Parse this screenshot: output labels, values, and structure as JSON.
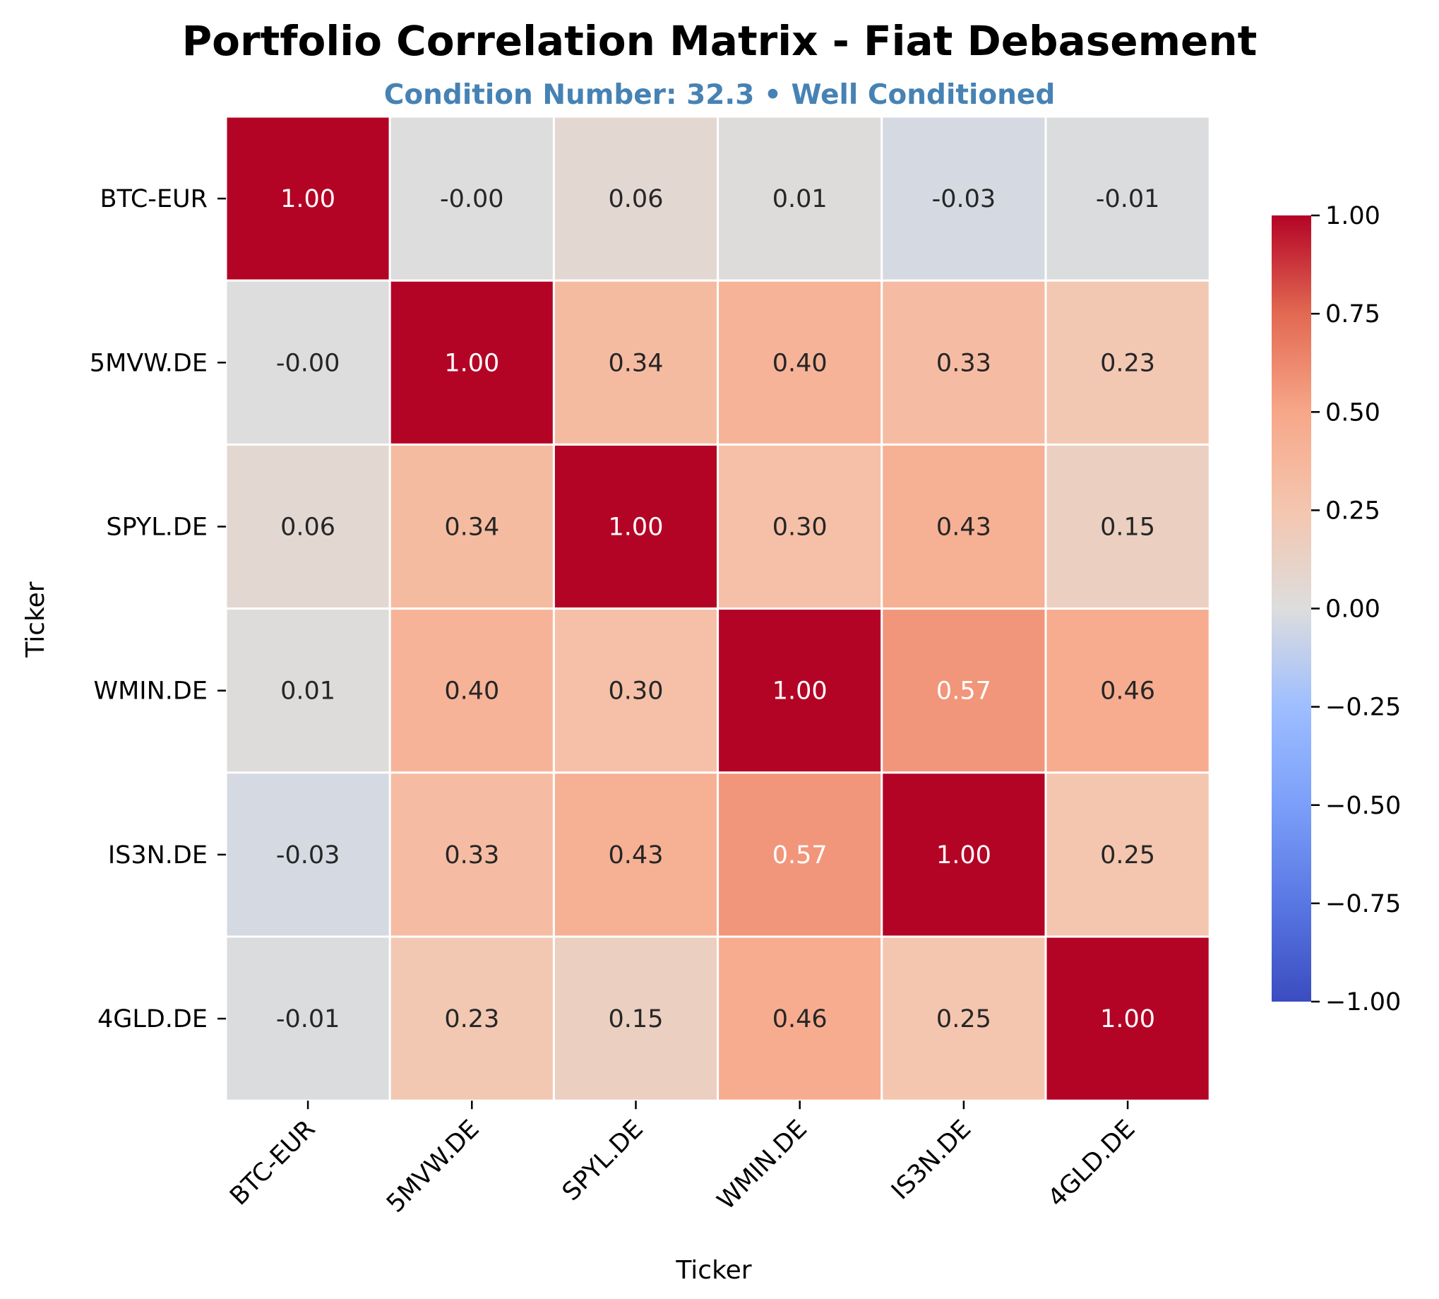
{
  "chart_data": {
    "type": "heatmap",
    "title": "Portfolio Correlation Matrix - Fiat Debasement",
    "subtitle": "Condition Number: 32.3 • Well Conditioned",
    "xlabel": "Ticker",
    "ylabel": "Ticker",
    "rows": [
      "BTC-EUR",
      "5MVW.DE",
      "SPYL.DE",
      "WMIN.DE",
      "IS3N.DE",
      "4GLD.DE"
    ],
    "columns": [
      "BTC-EUR",
      "5MVW.DE",
      "SPYL.DE",
      "WMIN.DE",
      "IS3N.DE",
      "4GLD.DE"
    ],
    "values": [
      [
        1.0,
        -0.0,
        0.06,
        0.01,
        -0.03,
        -0.01
      ],
      [
        -0.0,
        1.0,
        0.34,
        0.4,
        0.33,
        0.23
      ],
      [
        0.06,
        0.34,
        1.0,
        0.3,
        0.43,
        0.15
      ],
      [
        0.01,
        0.4,
        0.3,
        1.0,
        0.57,
        0.46
      ],
      [
        -0.03,
        0.33,
        0.43,
        0.57,
        1.0,
        0.25
      ],
      [
        -0.01,
        0.23,
        0.15,
        0.46,
        0.25,
        1.0
      ]
    ],
    "value_labels": [
      [
        "1.00",
        "-0.00",
        "0.06",
        "0.01",
        "-0.03",
        "-0.01"
      ],
      [
        "-0.00",
        "1.00",
        "0.34",
        "0.40",
        "0.33",
        "0.23"
      ],
      [
        "0.06",
        "0.34",
        "1.00",
        "0.30",
        "0.43",
        "0.15"
      ],
      [
        "0.01",
        "0.40",
        "0.30",
        "1.00",
        "0.57",
        "0.46"
      ],
      [
        "-0.03",
        "0.33",
        "0.43",
        "0.57",
        "1.00",
        "0.25"
      ],
      [
        "-0.01",
        "0.23",
        "0.15",
        "0.46",
        "0.25",
        "1.00"
      ]
    ],
    "colormap": "coolwarm",
    "vmin": -1.0,
    "vmax": 1.0,
    "colorbar_ticks": [
      1.0,
      0.75,
      0.5,
      0.25,
      0.0,
      -0.25,
      -0.5,
      -0.75,
      -1.0
    ],
    "colorbar_tick_labels": [
      "1.00",
      "0.75",
      "0.50",
      "0.25",
      "0.00",
      "−0.25",
      "−0.50",
      "−0.75",
      "−1.00"
    ],
    "colors": {
      "min": "#3b4cc0",
      "mid": "#dddddd",
      "max": "#b40426",
      "grid_line": "#ffffff"
    }
  }
}
